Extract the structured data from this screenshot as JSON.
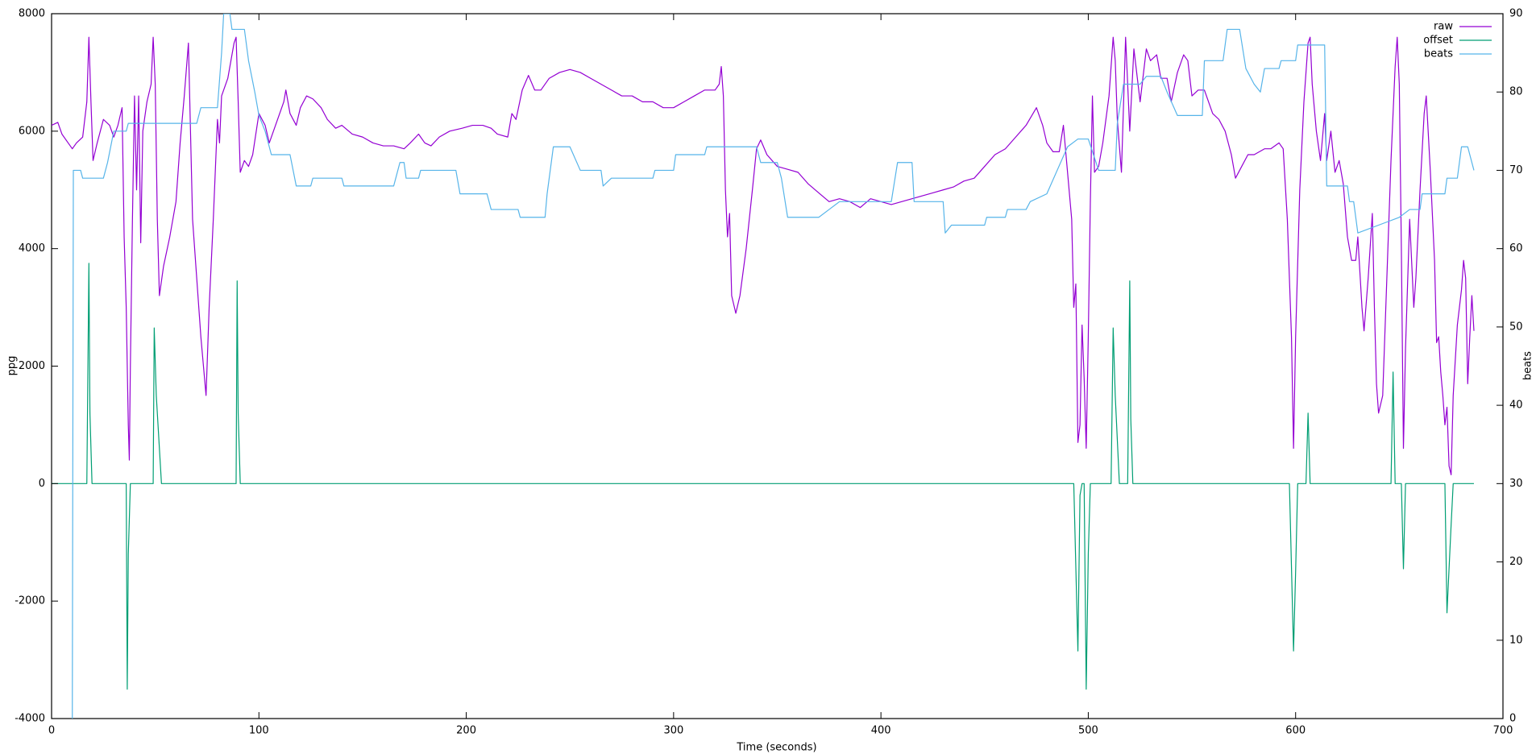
{
  "chart_data": {
    "type": "line",
    "xlabel": "Time (seconds)",
    "ylabel": "ppg",
    "y2label": "beats",
    "xlim": [
      0,
      700
    ],
    "xticks": [
      0,
      100,
      200,
      300,
      400,
      500,
      600,
      700
    ],
    "ylim": [
      -4000,
      8000
    ],
    "yticks": [
      -4000,
      -2000,
      0,
      2000,
      4000,
      6000,
      8000
    ],
    "y2lim": [
      0,
      90
    ],
    "y2ticks": [
      0,
      10,
      20,
      30,
      40,
      50,
      60,
      70,
      80,
      90
    ],
    "legend": "upper right",
    "series": [
      {
        "name": "raw",
        "color": "#9400d3",
        "x": [
          0,
          3,
          5,
          8,
          10,
          12,
          15,
          17,
          18,
          19,
          20,
          22,
          25,
          28,
          30,
          32,
          34,
          35,
          36,
          37,
          37.5,
          38,
          39,
          40,
          41,
          42,
          43,
          44,
          46,
          48,
          49,
          50,
          51,
          52,
          54,
          57,
          60,
          62,
          64,
          66,
          67,
          68,
          70,
          72,
          74,
          74.5,
          76,
          78,
          80,
          81,
          82,
          85,
          88,
          89,
          90,
          91,
          93,
          95,
          97,
          100,
          103,
          105,
          108,
          112,
          113,
          115,
          118,
          120,
          123,
          126,
          130,
          133,
          137,
          140,
          145,
          150,
          155,
          160,
          165,
          170,
          173,
          177,
          180,
          183,
          187,
          192,
          198,
          203,
          208,
          212,
          215,
          220,
          222,
          224,
          227,
          230,
          233,
          236,
          240,
          245,
          250,
          255,
          260,
          265,
          270,
          275,
          280,
          285,
          290,
          295,
          300,
          305,
          310,
          315,
          320,
          322,
          323,
          324,
          325,
          326,
          327,
          328,
          330,
          332,
          335,
          338,
          340,
          342,
          345,
          350,
          355,
          360,
          365,
          370,
          375,
          380,
          385,
          390,
          395,
          400,
          405,
          410,
          415,
          420,
          425,
          430,
          435,
          440,
          445,
          450,
          455,
          460,
          465,
          470,
          475,
          478,
          480,
          483,
          486,
          488,
          490,
          492,
          493,
          494,
          495,
          496,
          497,
          498,
          499,
          500,
          501,
          502,
          503,
          505,
          507,
          510,
          512,
          513,
          514,
          516,
          518,
          520,
          522,
          525,
          528,
          530,
          533,
          535,
          538,
          540,
          543,
          546,
          548,
          550,
          553,
          556,
          560,
          563,
          566,
          569,
          571,
          574,
          577,
          580,
          585,
          588,
          592,
          594,
          596,
          598,
          599,
          600,
          602,
          604,
          606,
          607,
          608,
          610,
          612,
          614,
          615,
          617,
          619,
          621,
          623,
          625,
          627,
          629,
          630,
          632,
          633,
          635,
          637,
          638,
          639,
          640,
          642,
          644,
          646,
          648,
          649,
          650,
          651,
          652,
          653,
          655,
          657,
          658,
          660,
          662,
          663,
          665,
          667,
          668,
          669,
          670,
          671,
          672,
          673,
          674,
          675,
          676,
          678,
          680,
          681,
          682,
          683,
          684,
          685,
          686
        ],
        "values": [
          6100,
          6150,
          5950,
          5800,
          5700,
          5800,
          5900,
          6500,
          7600,
          6500,
          5500,
          5800,
          6200,
          6100,
          5900,
          6100,
          6400,
          4200,
          3000,
          1000,
          400,
          2000,
          4500,
          6600,
          5000,
          6600,
          4100,
          6000,
          6500,
          6800,
          7600,
          6800,
          4500,
          3200,
          3700,
          4200,
          4800,
          5800,
          6600,
          7500,
          6000,
          4500,
          3500,
          2500,
          1700,
          1500,
          3000,
          4500,
          6200,
          5800,
          6600,
          6900,
          7500,
          7600,
          6500,
          5300,
          5500,
          5400,
          5600,
          6300,
          6100,
          5800,
          6100,
          6500,
          6700,
          6300,
          6100,
          6400,
          6600,
          6550,
          6400,
          6200,
          6050,
          6100,
          5950,
          5900,
          5800,
          5750,
          5750,
          5700,
          5800,
          5950,
          5800,
          5750,
          5900,
          6000,
          6050,
          6100,
          6100,
          6050,
          5950,
          5900,
          6300,
          6200,
          6700,
          6950,
          6700,
          6700,
          6900,
          7000,
          7050,
          7000,
          6900,
          6800,
          6700,
          6600,
          6600,
          6500,
          6500,
          6400,
          6400,
          6500,
          6600,
          6700,
          6700,
          6800,
          7100,
          6600,
          5000,
          4200,
          4600,
          3200,
          2900,
          3200,
          4000,
          5000,
          5700,
          5850,
          5600,
          5400,
          5350,
          5300,
          5100,
          4950,
          4800,
          4850,
          4800,
          4700,
          4850,
          4800,
          4750,
          4800,
          4850,
          4900,
          4950,
          5000,
          5050,
          5150,
          5200,
          5400,
          5600,
          5700,
          5900,
          6100,
          6400,
          6100,
          5800,
          5650,
          5650,
          6100,
          5300,
          4500,
          3000,
          3400,
          700,
          1000,
          2700,
          1800,
          600,
          2500,
          4800,
          6600,
          5300,
          5400,
          5800,
          6600,
          7600,
          7200,
          6200,
          5300,
          7600,
          6000,
          7400,
          6500,
          7400,
          7200,
          7300,
          6900,
          6900,
          6500,
          7000,
          7300,
          7200,
          6600,
          6700,
          6700,
          6300,
          6200,
          6000,
          5600,
          5200,
          5400,
          5600,
          5600,
          5700,
          5700,
          5800,
          5700,
          4500,
          2500,
          600,
          2500,
          5000,
          6500,
          7500,
          7600,
          6800,
          6000,
          5500,
          6300,
          5500,
          6000,
          5300,
          5500,
          5100,
          4200,
          3800,
          3800,
          4200,
          3000,
          2600,
          3500,
          4600,
          3000,
          1700,
          1200,
          1500,
          3500,
          5500,
          7100,
          7600,
          6800,
          4000,
          600,
          2300,
          4500,
          3000,
          3500,
          5000,
          6300,
          6600,
          5300,
          3800,
          2400,
          2500,
          1900,
          1500,
          1000,
          1300,
          300,
          150,
          1500,
          2700,
          3300,
          3800,
          3500,
          1700,
          2500,
          3200,
          2600
        ]
      },
      {
        "name": "offset",
        "color": "#009e73",
        "x": [
          0,
          17,
          18,
          18.5,
          19.5,
          36,
          36.5,
          37,
          38,
          49,
          49.5,
          50.5,
          53,
          89,
          89.5,
          90,
          91,
          493,
          495,
          496,
          497,
          498,
          499,
          500,
          501,
          511,
          512,
          513,
          515,
          519,
          520,
          520.5,
          521.5,
          597,
          599,
          600,
          601,
          605,
          606,
          607,
          646,
          647,
          648,
          651,
          652,
          653,
          672,
          673,
          675,
          676,
          686
        ],
        "values": [
          0,
          0,
          3750,
          1200,
          0,
          0,
          -3500,
          -1200,
          0,
          0,
          2650,
          1500,
          0,
          0,
          3450,
          1200,
          0,
          0,
          -2850,
          -200,
          0,
          0,
          -3500,
          -1200,
          0,
          0,
          2650,
          1500,
          0,
          0,
          3450,
          1100,
          0,
          0,
          -2850,
          -1500,
          0,
          0,
          1200,
          0,
          0,
          1900,
          0,
          0,
          -1450,
          0,
          0,
          -2200,
          -700,
          0,
          0
        ]
      },
      {
        "name": "beats",
        "color": "#56b4e9",
        "axis": "y2",
        "x": [
          10,
          10.5,
          14,
          15,
          25,
          27,
          30,
          36,
          37,
          70,
          72,
          80,
          82,
          83,
          86,
          87,
          93,
          95,
          98,
          100,
          103,
          106,
          115,
          118,
          125,
          126,
          140,
          141,
          165,
          166,
          168,
          170,
          171,
          177,
          178,
          195,
          197,
          210,
          212,
          225,
          226,
          238,
          239,
          240,
          242,
          250,
          255,
          265,
          266,
          270,
          290,
          291,
          300,
          301,
          315,
          316,
          340,
          342,
          350,
          352,
          355,
          370,
          375,
          380,
          390,
          405,
          408,
          415,
          416,
          430,
          431,
          434,
          450,
          451,
          460,
          461,
          470,
          472,
          480,
          485,
          490,
          495,
          500,
          505,
          513,
          514,
          517,
          525,
          528,
          535,
          538,
          543,
          555,
          556,
          565,
          567,
          573,
          576,
          580,
          583,
          585,
          592,
          593,
          600,
          601,
          614,
          615,
          625,
          626,
          628,
          630,
          640,
          650,
          655,
          660,
          661,
          672,
          673,
          678,
          680,
          683,
          686
        ],
        "values": [
          0,
          70,
          70,
          69,
          69,
          71,
          75,
          75,
          76,
          76,
          78,
          78,
          85,
          90,
          90,
          88,
          88,
          84,
          80,
          77,
          75,
          72,
          72,
          68,
          68,
          69,
          69,
          68,
          68,
          69,
          71,
          71,
          69,
          69,
          70,
          70,
          67,
          67,
          65,
          65,
          64,
          64,
          67,
          69,
          73,
          73,
          70,
          70,
          68,
          69,
          69,
          70,
          70,
          72,
          72,
          73,
          73,
          71,
          71,
          69,
          64,
          64,
          65,
          66,
          66,
          66,
          71,
          71,
          66,
          66,
          62,
          63,
          63,
          64,
          64,
          65,
          65,
          66,
          67,
          70,
          73,
          74,
          74,
          70,
          70,
          76,
          81,
          81,
          82,
          82,
          80,
          77,
          77,
          84,
          84,
          88,
          88,
          83,
          81,
          80,
          83,
          83,
          84,
          84,
          86,
          86,
          68,
          68,
          66,
          66,
          62,
          63,
          64,
          65,
          65,
          67,
          67,
          69,
          69,
          73,
          73,
          70
        ]
      }
    ]
  }
}
